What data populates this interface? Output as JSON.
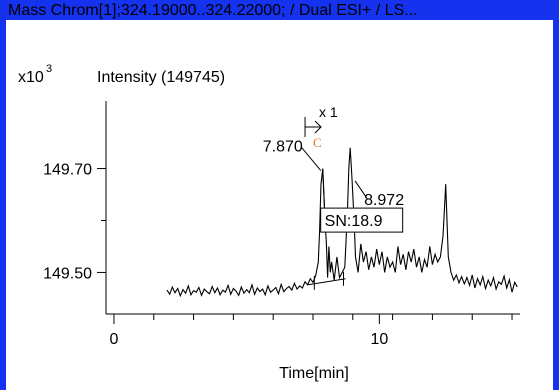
{
  "window": {
    "title": "Mass Chrom[1];324.19000..324.22000; / Dual ESI+ / LS...",
    "border_color": "#1533ee"
  },
  "chart_data": {
    "type": "line",
    "scale_label": "x10",
    "scale_exponent": "3",
    "intensity_label": "Intensity (149745)",
    "xlabel": "Time[min]",
    "xlim": [
      -0.3,
      15.3
    ],
    "ylim": [
      149.42,
      149.83
    ],
    "x_ticks": [
      0,
      10
    ],
    "x_minor_ticks": [
      1.5,
      3,
      4.5,
      6,
      7.5,
      9,
      10.5,
      12,
      13.5,
      15
    ],
    "y_ticks": [
      149.5,
      149.7
    ],
    "y_minor_ticks": [
      149.6
    ],
    "peaks": [
      {
        "time": 7.87,
        "label": "7.870"
      },
      {
        "time": 8.972,
        "label": "8.972"
      }
    ],
    "annotation_sn": "SN:18.9",
    "annotation_multiplier": "x 1",
    "annotation_c": "C",
    "series": [
      {
        "color": "#000000",
        "x": [
          2.0,
          2.1,
          2.2,
          2.3,
          2.4,
          2.5,
          2.6,
          2.7,
          2.8,
          2.9,
          3.0,
          3.1,
          3.2,
          3.3,
          3.4,
          3.5,
          3.6,
          3.7,
          3.8,
          3.9,
          4.0,
          4.1,
          4.2,
          4.3,
          4.4,
          4.5,
          4.6,
          4.7,
          4.8,
          4.9,
          5.0,
          5.1,
          5.2,
          5.3,
          5.4,
          5.5,
          5.6,
          5.7,
          5.8,
          5.9,
          6.0,
          6.1,
          6.2,
          6.3,
          6.4,
          6.5,
          6.6,
          6.7,
          6.8,
          6.9,
          7.0,
          7.1,
          7.2,
          7.3,
          7.4,
          7.5,
          7.6,
          7.7,
          7.75,
          7.8,
          7.87,
          7.95,
          8.0,
          8.05,
          8.1,
          8.15,
          8.2,
          8.3,
          8.4,
          8.5,
          8.6,
          8.7,
          8.8,
          8.85,
          8.9,
          8.97,
          9.05,
          9.1,
          9.2,
          9.3,
          9.4,
          9.5,
          9.6,
          9.7,
          9.8,
          9.9,
          10.0,
          10.1,
          10.2,
          10.3,
          10.4,
          10.5,
          10.6,
          10.7,
          10.8,
          10.9,
          11.0,
          11.1,
          11.2,
          11.3,
          11.4,
          11.5,
          11.6,
          11.7,
          11.8,
          11.9,
          12.0,
          12.1,
          12.2,
          12.3,
          12.4,
          12.45,
          12.5,
          12.55,
          12.6,
          12.7,
          12.8,
          12.9,
          13.0,
          13.1,
          13.2,
          13.3,
          13.4,
          13.5,
          13.6,
          13.7,
          13.8,
          13.9,
          14.0,
          14.1,
          14.2,
          14.3,
          14.4,
          14.5,
          14.6,
          14.7,
          14.8,
          14.9,
          15.0,
          15.1,
          15.2
        ],
        "y": [
          149.466,
          149.458,
          149.472,
          149.461,
          149.469,
          149.455,
          149.467,
          149.46,
          149.474,
          149.457,
          149.465,
          149.462,
          149.471,
          149.456,
          149.468,
          149.463,
          149.459,
          149.473,
          149.461,
          149.47,
          149.457,
          149.466,
          149.462,
          149.475,
          149.458,
          149.469,
          149.464,
          149.456,
          149.472,
          149.46,
          149.467,
          149.461,
          149.476,
          149.458,
          149.47,
          149.463,
          149.468,
          149.457,
          149.474,
          149.462,
          149.466,
          149.471,
          149.459,
          149.477,
          149.463,
          149.469,
          149.473,
          149.466,
          149.479,
          149.468,
          149.474,
          149.47,
          149.482,
          149.476,
          149.488,
          149.481,
          149.494,
          149.52,
          149.58,
          149.67,
          149.7,
          149.6,
          149.56,
          149.49,
          149.55,
          149.5,
          149.52,
          149.485,
          149.53,
          149.49,
          149.5,
          149.51,
          149.62,
          149.7,
          149.74,
          149.68,
          149.6,
          149.53,
          149.5,
          149.555,
          149.52,
          149.54,
          149.505,
          149.53,
          149.51,
          149.545,
          149.515,
          149.54,
          149.5,
          149.53,
          149.51,
          149.52,
          149.5,
          149.55,
          149.515,
          149.535,
          149.505,
          149.54,
          149.52,
          149.545,
          149.51,
          149.53,
          149.5,
          149.525,
          149.51,
          149.55,
          149.515,
          149.535,
          149.52,
          149.53,
          149.57,
          149.62,
          149.67,
          149.6,
          149.53,
          149.5,
          149.485,
          149.495,
          149.48,
          149.492,
          149.478,
          149.49,
          149.475,
          149.495,
          149.47,
          149.488,
          149.476,
          149.492,
          149.469,
          149.485,
          149.474,
          149.49,
          149.468,
          149.482,
          149.477,
          149.493,
          149.47,
          149.486,
          149.462,
          149.481,
          149.472
        ]
      }
    ]
  }
}
